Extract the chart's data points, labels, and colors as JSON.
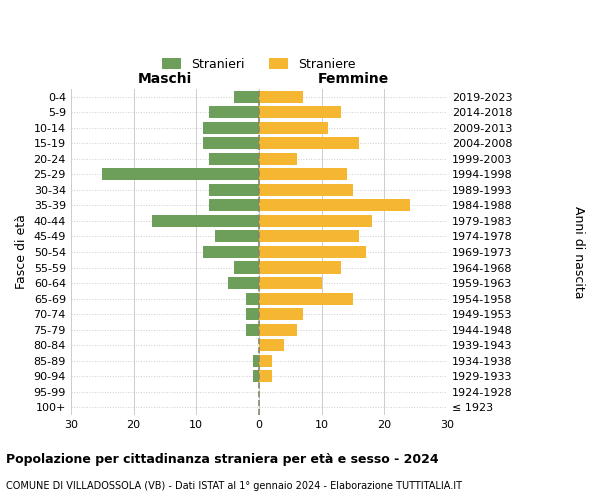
{
  "age_groups": [
    "100+",
    "95-99",
    "90-94",
    "85-89",
    "80-84",
    "75-79",
    "70-74",
    "65-69",
    "60-64",
    "55-59",
    "50-54",
    "45-49",
    "40-44",
    "35-39",
    "30-34",
    "25-29",
    "20-24",
    "15-19",
    "10-14",
    "5-9",
    "0-4"
  ],
  "birth_years": [
    "≤ 1923",
    "1924-1928",
    "1929-1933",
    "1934-1938",
    "1939-1943",
    "1944-1948",
    "1949-1953",
    "1954-1958",
    "1959-1963",
    "1964-1968",
    "1969-1973",
    "1974-1978",
    "1979-1983",
    "1984-1988",
    "1989-1993",
    "1994-1998",
    "1999-2003",
    "2004-2008",
    "2009-2013",
    "2014-2018",
    "2019-2023"
  ],
  "males": [
    0,
    0,
    1,
    1,
    0,
    2,
    2,
    2,
    5,
    4,
    9,
    7,
    17,
    8,
    8,
    25,
    8,
    9,
    9,
    8,
    4
  ],
  "females": [
    0,
    0,
    2,
    2,
    4,
    6,
    7,
    15,
    10,
    13,
    17,
    16,
    18,
    24,
    15,
    14,
    6,
    16,
    11,
    13,
    7
  ],
  "male_color": "#6d9e5a",
  "female_color": "#f5b731",
  "background_color": "#ffffff",
  "grid_color": "#cccccc",
  "center_line_color": "#888866",
  "xlim": 30,
  "title": "Popolazione per cittadinanza straniera per età e sesso - 2024",
  "subtitle": "COMUNE DI VILLADOSSOLA (VB) - Dati ISTAT al 1° gennaio 2024 - Elaborazione TUTTITALIA.IT",
  "left_header": "Maschi",
  "right_header": "Femmine",
  "left_ylabel": "Fasce di età",
  "right_ylabel": "Anni di nascita",
  "legend_male": "Stranieri",
  "legend_female": "Straniere",
  "bar_height": 0.78
}
